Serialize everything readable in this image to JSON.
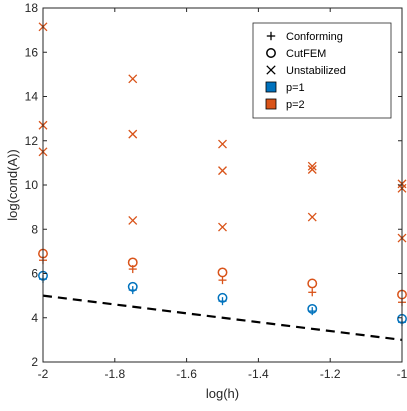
{
  "chart_data": {
    "type": "scatter",
    "xlabel": "log(h)",
    "ylabel": "log(cond(A))",
    "xlim": [
      -2,
      -1
    ],
    "ylim": [
      2,
      18
    ],
    "xticks": [
      -2,
      -1.8,
      -1.6,
      -1.4,
      -1.2,
      -1
    ],
    "xtick_labels": [
      "-2",
      "-1.8",
      "-1.6",
      "-1.4",
      "-1.2",
      "-1"
    ],
    "yticks": [
      2,
      4,
      6,
      8,
      10,
      12,
      14,
      16,
      18
    ],
    "ytick_labels": [
      "2",
      "4",
      "6",
      "8",
      "10",
      "12",
      "14",
      "16",
      "18"
    ],
    "grid": false,
    "legend_position": "top-right",
    "legend": [
      {
        "label": "Conforming",
        "marker": "plus",
        "color": "#000000"
      },
      {
        "label": "CutFEM",
        "marker": "circle",
        "color": "#000000"
      },
      {
        "label": "Unstabilized",
        "marker": "x",
        "color": "#000000"
      },
      {
        "label": "p=1",
        "marker": "square",
        "color": "#0072BD"
      },
      {
        "label": "p=2",
        "marker": "square",
        "color": "#D95319"
      }
    ],
    "series": [
      {
        "method": "Conforming",
        "degree": "p=1",
        "marker": "plus",
        "color": "#0072BD",
        "x": [
          -2,
          -1.75,
          -1.5,
          -1.25,
          -1
        ],
        "y": [
          5.75,
          5.25,
          4.75,
          4.3,
          3.8
        ]
      },
      {
        "method": "CutFEM",
        "degree": "p=1",
        "marker": "circle",
        "color": "#0072BD",
        "x": [
          -2,
          -1.75,
          -1.5,
          -1.25,
          -1
        ],
        "y": [
          5.9,
          5.4,
          4.9,
          4.4,
          3.95
        ]
      },
      {
        "method": "Conforming",
        "degree": "p=2",
        "marker": "plus",
        "color": "#D95319",
        "x": [
          -2,
          -1.75,
          -1.5,
          -1.25,
          -1
        ],
        "y": [
          6.6,
          6.2,
          5.7,
          5.15,
          4.7
        ]
      },
      {
        "method": "CutFEM",
        "degree": "p=2",
        "marker": "circle",
        "color": "#D95319",
        "x": [
          -2,
          -1.75,
          -1.5,
          -1.25,
          -1
        ],
        "y": [
          6.9,
          6.5,
          6.05,
          5.55,
          5.05
        ]
      },
      {
        "method": "Unstabilized",
        "degree": "p=2",
        "marker": "x",
        "color": "#D95319",
        "x": [
          -2,
          -2,
          -2,
          -1.75,
          -1.75,
          -1.75,
          -1.5,
          -1.5,
          -1.5,
          -1.25,
          -1.25,
          -1.25,
          -1,
          -1,
          -1
        ],
        "y": [
          17.15,
          12.7,
          11.5,
          14.8,
          12.3,
          8.4,
          11.85,
          10.65,
          8.1,
          10.85,
          10.7,
          8.55,
          10.05,
          9.85,
          7.6
        ]
      }
    ],
    "reference_line": {
      "style": "dashed",
      "color": "#000000",
      "x": [
        -2,
        -1
      ],
      "y": [
        5,
        3
      ]
    }
  }
}
